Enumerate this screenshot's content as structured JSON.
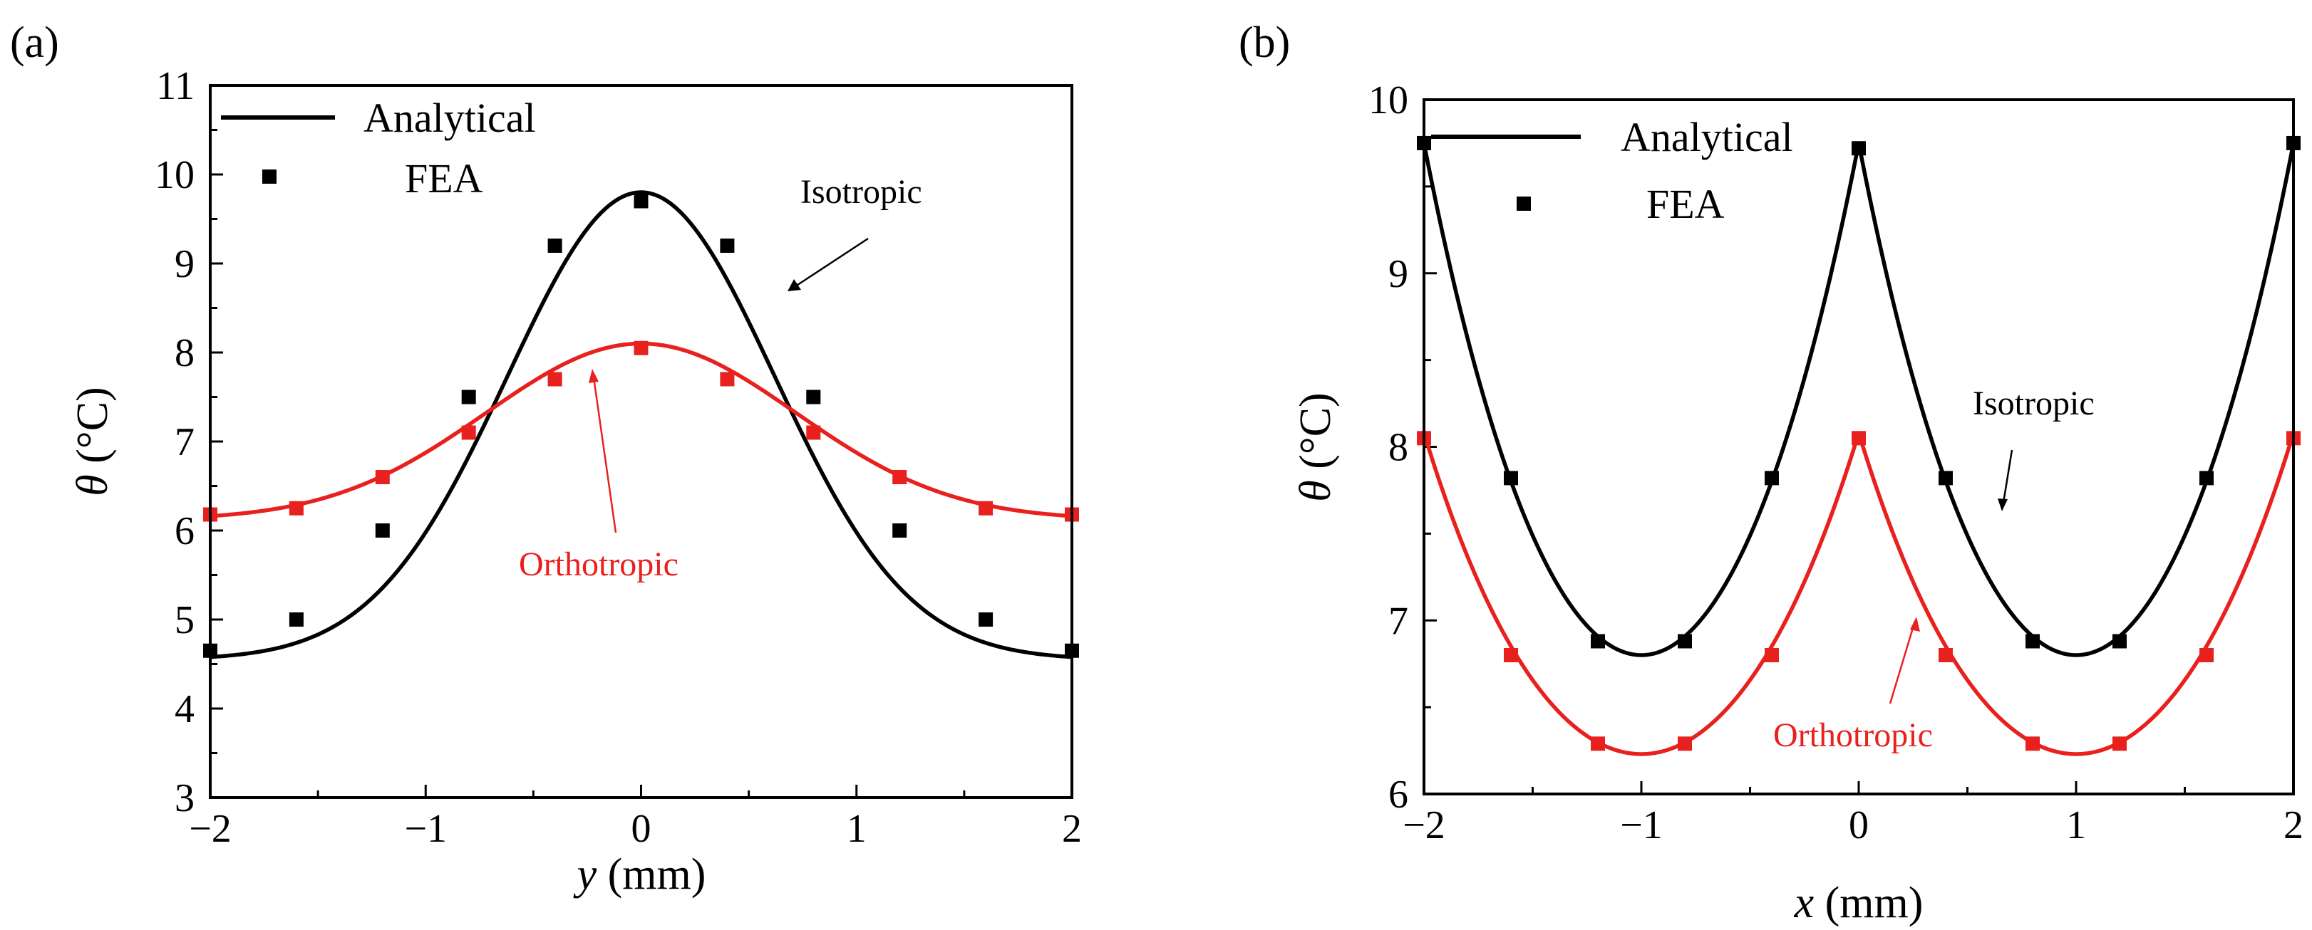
{
  "chart_data": [
    {
      "type": "line",
      "panel_label": "(a)",
      "xlabel_var": "y",
      "xlabel_unit": " (mm)",
      "ylabel_var": "θ",
      "ylabel_unit": " (°C)",
      "xlim": [
        -2,
        2
      ],
      "ylim": [
        3,
        11
      ],
      "xticks": [
        -2,
        -1,
        0,
        1,
        2
      ],
      "xtick_labels": [
        "−2",
        "−1",
        "0",
        "1",
        "2"
      ],
      "yticks": [
        3,
        4,
        5,
        6,
        7,
        8,
        9,
        10,
        11
      ],
      "ytick_labels": [
        "3",
        "4",
        "5",
        "6",
        "7",
        "8",
        "9",
        "10",
        "11"
      ],
      "legend": {
        "position": "top-left",
        "analytical_label": "Analytical",
        "fea_label": "FEA"
      },
      "series": [
        {
          "name": "Isotropic",
          "color": "#000000",
          "model": "gaussian",
          "base": 4.55,
          "amp": 5.25,
          "sigma": 0.62,
          "fea_x": [
            -2,
            -1.6,
            -1.2,
            -0.8,
            -0.4,
            0,
            0.4,
            0.8,
            1.2,
            1.6,
            2
          ],
          "fea_y": [
            4.65,
            5.0,
            6.0,
            7.5,
            9.2,
            9.7,
            9.2,
            7.5,
            6.0,
            5.0,
            4.65
          ],
          "annotation": "Isotropic"
        },
        {
          "name": "Orthotropic",
          "color": "#e8201e",
          "model": "gaussian",
          "base": 6.12,
          "amp": 1.98,
          "sigma": 0.72,
          "fea_x": [
            -2,
            -1.6,
            -1.2,
            -0.8,
            -0.4,
            0,
            0.4,
            0.8,
            1.2,
            1.6,
            2
          ],
          "fea_y": [
            6.18,
            6.25,
            6.6,
            7.1,
            7.7,
            8.05,
            7.7,
            7.1,
            6.6,
            6.25,
            6.18
          ],
          "annotation": "Orthotropic"
        }
      ]
    },
    {
      "type": "line",
      "panel_label": "(b)",
      "xlabel_var": "x",
      "xlabel_unit": " (mm)",
      "ylabel_var": "θ",
      "ylabel_unit": " (°C)",
      "xlim": [
        -2,
        2
      ],
      "ylim": [
        6,
        10
      ],
      "xticks": [
        -2,
        -1,
        0,
        1,
        2
      ],
      "xtick_labels": [
        "−2",
        "−1",
        "0",
        "1",
        "2"
      ],
      "yticks": [
        6,
        7,
        8,
        9,
        10
      ],
      "ytick_labels": [
        "6",
        "7",
        "8",
        "9",
        "10"
      ],
      "legend": {
        "position": "top-left",
        "analytical_label": "Analytical",
        "fea_label": "FEA"
      },
      "series": [
        {
          "name": "Isotropic",
          "color": "#000000",
          "model": "cusp",
          "minval": 6.8,
          "maxval": 9.75,
          "decay": 1.05,
          "fea_x": [
            -2,
            -1.6,
            -1.2,
            -0.8,
            -0.4,
            0,
            0.4,
            0.8,
            1.2,
            1.6,
            2
          ],
          "fea_y": [
            9.75,
            7.82,
            6.88,
            6.88,
            7.82,
            9.72,
            7.82,
            6.88,
            6.88,
            7.82,
            9.75
          ],
          "annotation": "Isotropic"
        },
        {
          "name": "Orthotropic",
          "color": "#e8201e",
          "model": "cusp",
          "minval": 6.23,
          "maxval": 8.08,
          "decay": 1.15,
          "fea_x": [
            -2,
            -1.6,
            -1.2,
            -0.8,
            -0.4,
            0,
            0.4,
            0.8,
            1.2,
            1.6,
            2
          ],
          "fea_y": [
            8.05,
            6.8,
            6.29,
            6.29,
            6.8,
            8.05,
            6.8,
            6.29,
            6.29,
            6.8,
            8.05
          ],
          "annotation": "Orthotropic"
        }
      ]
    }
  ]
}
